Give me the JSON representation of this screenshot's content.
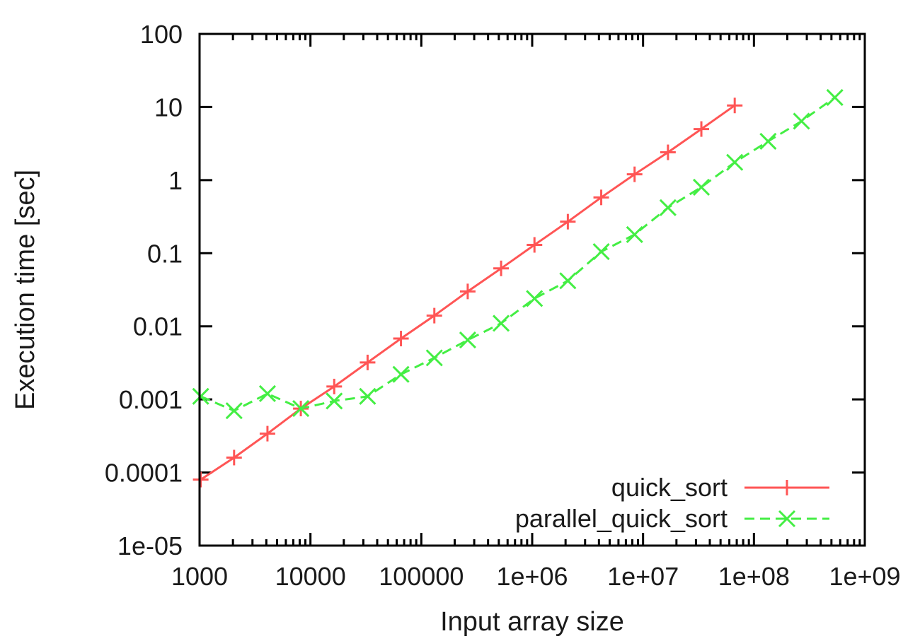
{
  "chart_data": {
    "type": "line",
    "title": "",
    "xlabel": "Input array size",
    "ylabel": "Execution time [sec]",
    "xscale": "log",
    "yscale": "log",
    "xlim": [
      1000,
      1000000000
    ],
    "ylim": [
      1e-05,
      100
    ],
    "x_tick_labels": [
      "1000",
      "10000",
      "100000",
      "1e+06",
      "1e+07",
      "1e+08",
      "1e+09"
    ],
    "y_tick_labels": [
      "1e-05",
      "0.0001",
      "0.001",
      "0.01",
      "0.1",
      "1",
      "10",
      "100"
    ],
    "grid": false,
    "legend_position": "bottom-right",
    "series": [
      {
        "name": "quick_sort",
        "color": "#ff5555",
        "marker": "plus",
        "line_style": "solid",
        "x": [
          1024,
          2048,
          4096,
          8192,
          16384,
          32768,
          65536,
          131072,
          262144,
          524288,
          1048576,
          2097152,
          4194304,
          8388608,
          16777216,
          33554432,
          67108864
        ],
        "y": [
          8e-05,
          0.00016,
          0.00034,
          0.00075,
          0.0015,
          0.0032,
          0.0068,
          0.014,
          0.03,
          0.062,
          0.13,
          0.27,
          0.58,
          1.2,
          2.4,
          5.0,
          10.5
        ]
      },
      {
        "name": "parallel_quick_sort",
        "color": "#44ee44",
        "marker": "cross",
        "line_style": "dashed",
        "x": [
          1024,
          2048,
          4096,
          8192,
          16384,
          32768,
          65536,
          131072,
          262144,
          524288,
          1048576,
          2097152,
          4194304,
          8388608,
          16777216,
          33554432,
          67108864,
          134217728,
          268435456,
          536870912
        ],
        "y": [
          0.0011,
          0.0007,
          0.0012,
          0.00075,
          0.00095,
          0.0011,
          0.0022,
          0.0037,
          0.0065,
          0.011,
          0.024,
          0.042,
          0.105,
          0.18,
          0.42,
          0.8,
          1.75,
          3.4,
          6.4,
          13.5
        ]
      }
    ]
  }
}
